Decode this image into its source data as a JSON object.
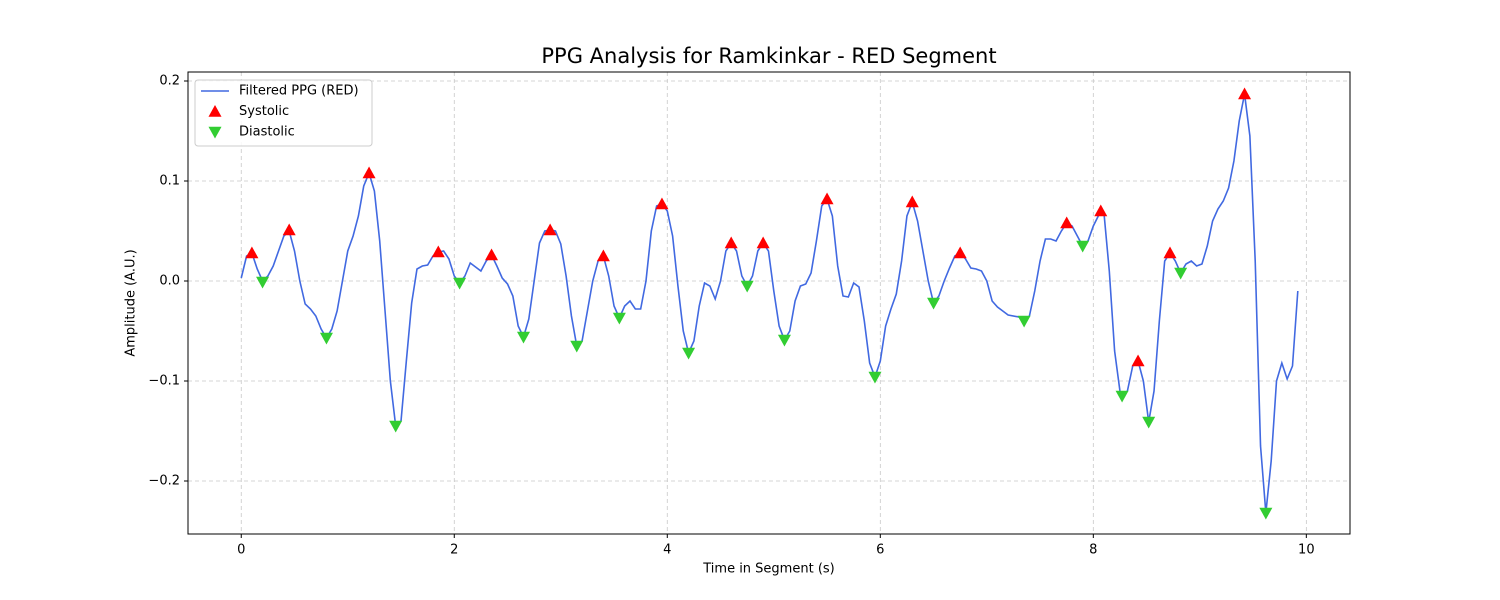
{
  "chart_data": {
    "type": "line",
    "title": "PPG Analysis for Ramkinkar - RED Segment",
    "x_label": "Time in Segment (s)",
    "y_label": "Amplitude (A.U.)",
    "xlim": [
      -0.5,
      10.41
    ],
    "ylim": [
      -0.253,
      0.209
    ],
    "xticks": [
      0,
      2,
      4,
      6,
      8,
      10
    ],
    "yticks": [
      {
        "value": -0.2,
        "label": "−0.2"
      },
      {
        "value": -0.1,
        "label": "−0.1"
      },
      {
        "value": 0,
        "label": "0.0"
      },
      0.1,
      0.2
    ],
    "grid": true,
    "legend": "upper left",
    "series": [
      {
        "name": "Filtered PPG (RED)",
        "color": "#4169e1",
        "marker": "none",
        "x": [
          0,
          0.05,
          0.1,
          0.15,
          0.2,
          0.25,
          0.3,
          0.35,
          0.4,
          0.45,
          0.5,
          0.55,
          0.6,
          0.65,
          0.7,
          0.75,
          0.8,
          0.85,
          0.9,
          0.95,
          1.0,
          1.05,
          1.1,
          1.15,
          1.2,
          1.25,
          1.3,
          1.35,
          1.4,
          1.45,
          1.5,
          1.55,
          1.6,
          1.65,
          1.7,
          1.75,
          1.8,
          1.85,
          1.9,
          1.95,
          2.0,
          2.05,
          2.1,
          2.15,
          2.2,
          2.25,
          2.3,
          2.35,
          2.4,
          2.45,
          2.5,
          2.55,
          2.6,
          2.65,
          2.7,
          2.75,
          2.8,
          2.85,
          2.9,
          2.95,
          3.0,
          3.05,
          3.1,
          3.15,
          3.2,
          3.25,
          3.3,
          3.35,
          3.4,
          3.45,
          3.5,
          3.55,
          3.6,
          3.65,
          3.7,
          3.75,
          3.8,
          3.85,
          3.9,
          3.95,
          4.0,
          4.05,
          4.1,
          4.15,
          4.2,
          4.25,
          4.3,
          4.35,
          4.4,
          4.45,
          4.5,
          4.55,
          4.6,
          4.65,
          4.7,
          4.75,
          4.8,
          4.85,
          4.9,
          4.95,
          5.0,
          5.05,
          5.1,
          5.15,
          5.2,
          5.25,
          5.3,
          5.35,
          5.4,
          5.45,
          5.5,
          5.55,
          5.6,
          5.65,
          5.7,
          5.75,
          5.8,
          5.85,
          5.9,
          5.95,
          6.0,
          6.05,
          6.1,
          6.15,
          6.2,
          6.25,
          6.3,
          6.35,
          6.4,
          6.45,
          6.5,
          6.55,
          6.6,
          6.65,
          6.7,
          6.75,
          6.8,
          6.85,
          6.9,
          6.95,
          7.0,
          7.05,
          7.1,
          7.15,
          7.2,
          7.3,
          7.35,
          7.4,
          7.45,
          7.5,
          7.55,
          7.6,
          7.65,
          7.7,
          7.75,
          7.8,
          7.85,
          7.9,
          7.95,
          8.0,
          8.07,
          8.1,
          8.15,
          8.2,
          8.25,
          8.27,
          8.32,
          8.37,
          8.42,
          8.47,
          8.52,
          8.57,
          8.62,
          8.67,
          8.72,
          8.77,
          8.82,
          8.87,
          8.92,
          8.97,
          9.02,
          9.07,
          9.12,
          9.17,
          9.22,
          9.27,
          9.32,
          9.37,
          9.42,
          9.47,
          9.52,
          9.57,
          9.62,
          9.67,
          9.72,
          9.77,
          9.82,
          9.87,
          9.92
        ],
        "values": [
          0.003,
          0.025,
          0.028,
          0.012,
          0.0,
          0.005,
          0.015,
          0.03,
          0.045,
          0.05,
          0.03,
          0.0,
          -0.023,
          -0.028,
          -0.035,
          -0.048,
          -0.057,
          -0.048,
          -0.03,
          0.0,
          0.03,
          0.045,
          0.065,
          0.095,
          0.108,
          0.09,
          0.04,
          -0.03,
          -0.1,
          -0.145,
          -0.14,
          -0.08,
          -0.022,
          0.012,
          0.015,
          0.016,
          0.025,
          0.029,
          0.03,
          0.022,
          0.005,
          -0.002,
          0.005,
          0.018,
          0.014,
          0.01,
          0.02,
          0.026,
          0.015,
          0.003,
          -0.003,
          -0.015,
          -0.045,
          -0.056,
          -0.038,
          0.0,
          0.038,
          0.05,
          0.051,
          0.05,
          0.037,
          0.005,
          -0.035,
          -0.065,
          -0.06,
          -0.03,
          0.0,
          0.02,
          0.025,
          0.005,
          -0.025,
          -0.037,
          -0.025,
          -0.02,
          -0.028,
          -0.028,
          0.0,
          0.05,
          0.075,
          0.077,
          0.07,
          0.045,
          -0.005,
          -0.05,
          -0.072,
          -0.06,
          -0.025,
          -0.002,
          -0.005,
          -0.018,
          0.0,
          0.03,
          0.038,
          0.03,
          0.005,
          -0.005,
          0.005,
          0.03,
          0.038,
          0.03,
          -0.01,
          -0.045,
          -0.059,
          -0.05,
          -0.02,
          -0.005,
          -0.003,
          0.008,
          0.04,
          0.075,
          0.082,
          0.065,
          0.015,
          -0.015,
          -0.016,
          -0.002,
          -0.006,
          -0.04,
          -0.082,
          -0.096,
          -0.08,
          -0.045,
          -0.028,
          -0.013,
          0.02,
          0.065,
          0.079,
          0.06,
          0.03,
          0.0,
          -0.022,
          -0.015,
          0.0,
          0.013,
          0.025,
          0.028,
          0.022,
          0.013,
          0.012,
          0.01,
          0.0,
          -0.02,
          -0.026,
          -0.03,
          -0.034,
          -0.036,
          -0.04,
          -0.035,
          -0.01,
          0.02,
          0.042,
          0.042,
          0.04,
          0.05,
          0.058,
          0.055,
          0.045,
          0.035,
          0.04,
          0.055,
          0.07,
          0.068,
          0.01,
          -0.07,
          -0.11,
          -0.115,
          -0.11,
          -0.085,
          -0.08,
          -0.1,
          -0.141,
          -0.11,
          -0.04,
          0.02,
          0.028,
          0.02,
          0.008,
          0.017,
          0.02,
          0.015,
          0.017,
          0.035,
          0.06,
          0.072,
          0.08,
          0.093,
          0.12,
          0.16,
          0.187,
          0.145,
          0.02,
          -0.165,
          -0.232,
          -0.18,
          -0.1,
          -0.082,
          -0.098,
          -0.085,
          -0.01
        ]
      },
      {
        "name": "Systolic",
        "color": "#ff0000",
        "marker": "^",
        "x": [
          0.1,
          0.45,
          1.2,
          1.85,
          2.35,
          2.9,
          3.4,
          3.95,
          4.6,
          4.9,
          5.5,
          6.3,
          6.75,
          7.75,
          8.07,
          8.42,
          8.72,
          9.42
        ],
        "values": [
          0.028,
          0.051,
          0.108,
          0.029,
          0.026,
          0.051,
          0.025,
          0.077,
          0.038,
          0.038,
          0.082,
          0.079,
          0.028,
          0.058,
          0.07,
          -0.08,
          0.028,
          0.187
        ]
      },
      {
        "name": "Diastolic",
        "color": "#32cd32",
        "marker": "v",
        "x": [
          0.2,
          0.8,
          1.45,
          2.05,
          2.65,
          3.15,
          3.55,
          4.2,
          4.75,
          5.1,
          5.95,
          6.5,
          7.35,
          7.9,
          8.27,
          8.52,
          8.82,
          9.62
        ],
        "values": [
          -0.001,
          -0.057,
          -0.145,
          -0.002,
          -0.056,
          -0.065,
          -0.037,
          -0.072,
          -0.005,
          -0.059,
          -0.096,
          -0.022,
          -0.04,
          0.035,
          -0.115,
          -0.141,
          0.008,
          -0.232
        ]
      }
    ]
  }
}
